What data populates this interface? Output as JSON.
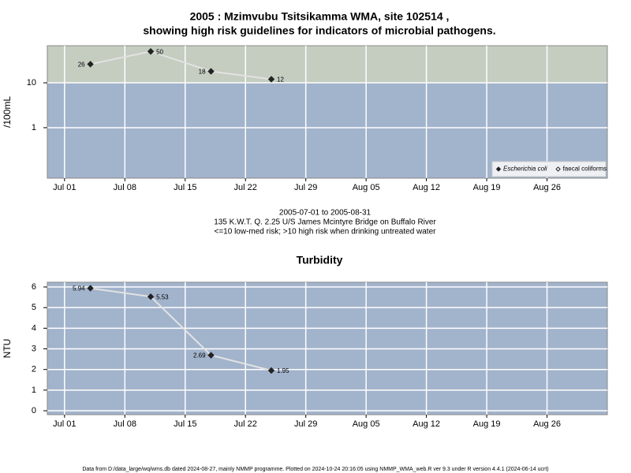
{
  "chart_data": [
    {
      "type": "line",
      "title": [
        "2005 : Mzimvubu Tsitsikamma WMA, site 102514 ,",
        "showing high risk guidelines for indicators of microbial pathogens."
      ],
      "subtitle": [
        "2005-07-01 to 2005-08-31",
        "135 K.W.T. Q. 2.25 U/S James Mcintyre Bridge on Buffalo River",
        "<=10 low-med risk; >10 high risk when drinking untreated water"
      ],
      "ylabel": "/100mL",
      "x": [
        "Jul 04",
        "Jul 11",
        "Jul 18",
        "Jul 25"
      ],
      "xlim": [
        "Jun 29",
        "Sep 02"
      ],
      "xticks": [
        "Jul 01",
        "Jul 08",
        "Jul 15",
        "Jul 22",
        "Jul 29",
        "Aug 05",
        "Aug 12",
        "Aug 19",
        "Aug 26"
      ],
      "ylim": [
        0.075,
        67
      ],
      "yticks": [
        1,
        10
      ],
      "log_y": true,
      "grid": true,
      "threshold": 10,
      "band_colors": [
        "#a2b3cc",
        "#c4cdc0"
      ],
      "line_color": "#e2e2e2",
      "legend": "bottom right",
      "series": [
        {
          "name": "Escherichia coli",
          "color": "#222222",
          "filled": true,
          "values": [
            26,
            50,
            18,
            12
          ]
        },
        {
          "name": "faecal coliforms",
          "color": "#222222",
          "filled": false,
          "values": [
            null,
            null,
            null,
            null
          ]
        }
      ]
    },
    {
      "type": "line",
      "title": [
        "Turbidity"
      ],
      "ylabel": "NTU",
      "x": [
        "Jul 04",
        "Jul 11",
        "Jul 18",
        "Jul 25"
      ],
      "xlim": [
        "Jun 29",
        "Sep 02"
      ],
      "xticks": [
        "Jul 01",
        "Jul 08",
        "Jul 15",
        "Jul 22",
        "Jul 29",
        "Aug 05",
        "Aug 12",
        "Aug 19",
        "Aug 26"
      ],
      "ylim": [
        -0.19,
        6.23
      ],
      "yticks": [
        0,
        1,
        2,
        3,
        4,
        5,
        6
      ],
      "log_y": false,
      "grid": true,
      "band_colors": [
        "#a2b3cc"
      ],
      "line_color": "#e2e2e2",
      "series": [
        {
          "color": "#222222",
          "filled": true,
          "values": [
            5.94,
            5.53,
            2.69,
            1.95
          ]
        }
      ]
    }
  ],
  "footer": "Data from D:/data_large/wq/wms.db dated 2024-08-27, mainly NMMP programme. Plotted on 2024-10-24 20:16:05 using NMMP_WMA_web.R ver 9.3 under R version 4.4.1 (2024-06-14 ucrt)"
}
